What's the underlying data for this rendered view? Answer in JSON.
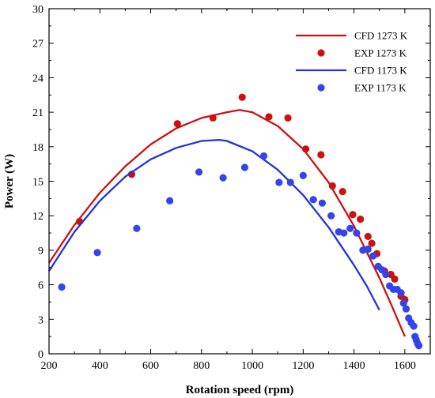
{
  "chart_data": {
    "type": "line",
    "xlabel": "Rotation speed (rpm)",
    "ylabel": "Power (W)",
    "xlim": [
      200,
      1700
    ],
    "ylim": [
      0,
      30
    ],
    "xticks": [
      200,
      400,
      600,
      800,
      1000,
      1200,
      1400,
      1600
    ],
    "yticks": [
      0,
      3,
      6,
      9,
      12,
      15,
      18,
      21,
      24,
      27,
      30
    ],
    "legend_position": "top-right",
    "grid": false,
    "series": [
      {
        "name": "CFD 1273 K",
        "kind": "line",
        "color": "#cc1111",
        "points": [
          [
            200,
            7.9
          ],
          [
            300,
            11.2
          ],
          [
            400,
            14.0
          ],
          [
            500,
            16.3
          ],
          [
            600,
            18.2
          ],
          [
            700,
            19.6
          ],
          [
            800,
            20.5
          ],
          [
            900,
            21.0
          ],
          [
            950,
            21.2
          ],
          [
            1000,
            21.0
          ],
          [
            1100,
            19.8
          ],
          [
            1200,
            17.8
          ],
          [
            1300,
            14.9
          ],
          [
            1400,
            11.1
          ],
          [
            1500,
            6.6
          ],
          [
            1550,
            4.1
          ],
          [
            1600,
            1.5
          ]
        ]
      },
      {
        "name": "EXP 1273 K",
        "kind": "scatter",
        "color": "#cc1111",
        "points": [
          [
            320,
            11.5
          ],
          [
            525,
            15.6
          ],
          [
            705,
            20.0
          ],
          [
            845,
            20.5
          ],
          [
            960,
            22.3
          ],
          [
            1065,
            20.6
          ],
          [
            1140,
            20.5
          ],
          [
            1210,
            17.8
          ],
          [
            1270,
            17.3
          ],
          [
            1315,
            14.6
          ],
          [
            1355,
            14.1
          ],
          [
            1395,
            12.1
          ],
          [
            1425,
            11.7
          ],
          [
            1455,
            10.2
          ],
          [
            1470,
            9.6
          ],
          [
            1490,
            8.7
          ],
          [
            1520,
            7.2
          ],
          [
            1545,
            6.9
          ],
          [
            1560,
            6.5
          ],
          [
            1585,
            5.0
          ],
          [
            1600,
            4.7
          ]
        ]
      },
      {
        "name": "CFD 1173 K",
        "kind": "line",
        "color": "#2233dd",
        "points": [
          [
            200,
            7.2
          ],
          [
            300,
            10.6
          ],
          [
            400,
            13.3
          ],
          [
            500,
            15.4
          ],
          [
            600,
            16.9
          ],
          [
            700,
            17.9
          ],
          [
            800,
            18.5
          ],
          [
            870,
            18.6
          ],
          [
            900,
            18.5
          ],
          [
            1000,
            17.6
          ],
          [
            1100,
            16.0
          ],
          [
            1200,
            13.8
          ],
          [
            1300,
            11.0
          ],
          [
            1400,
            7.7
          ],
          [
            1450,
            5.9
          ],
          [
            1500,
            3.8
          ]
        ]
      },
      {
        "name": "EXP 1173 K",
        "kind": "scatter",
        "color": "#3344ee",
        "points": [
          [
            250,
            5.8
          ],
          [
            390,
            8.8
          ],
          [
            545,
            10.9
          ],
          [
            675,
            13.3
          ],
          [
            790,
            15.8
          ],
          [
            885,
            15.3
          ],
          [
            970,
            16.2
          ],
          [
            1045,
            17.2
          ],
          [
            1105,
            14.9
          ],
          [
            1150,
            14.9
          ],
          [
            1200,
            15.5
          ],
          [
            1240,
            13.4
          ],
          [
            1275,
            13.1
          ],
          [
            1310,
            12.0
          ],
          [
            1340,
            10.6
          ],
          [
            1360,
            10.5
          ],
          [
            1385,
            10.9
          ],
          [
            1410,
            10.5
          ],
          [
            1435,
            9.0
          ],
          [
            1455,
            9.1
          ],
          [
            1475,
            8.5
          ],
          [
            1495,
            7.6
          ],
          [
            1510,
            7.3
          ],
          [
            1525,
            6.9
          ],
          [
            1540,
            5.9
          ],
          [
            1555,
            5.6
          ],
          [
            1570,
            5.6
          ],
          [
            1585,
            5.3
          ],
          [
            1595,
            4.4
          ],
          [
            1605,
            3.9
          ],
          [
            1615,
            3.1
          ],
          [
            1625,
            2.7
          ],
          [
            1635,
            2.4
          ],
          [
            1640,
            1.5
          ],
          [
            1645,
            1.2
          ],
          [
            1650,
            0.9
          ],
          [
            1655,
            0.7
          ]
        ]
      }
    ]
  }
}
